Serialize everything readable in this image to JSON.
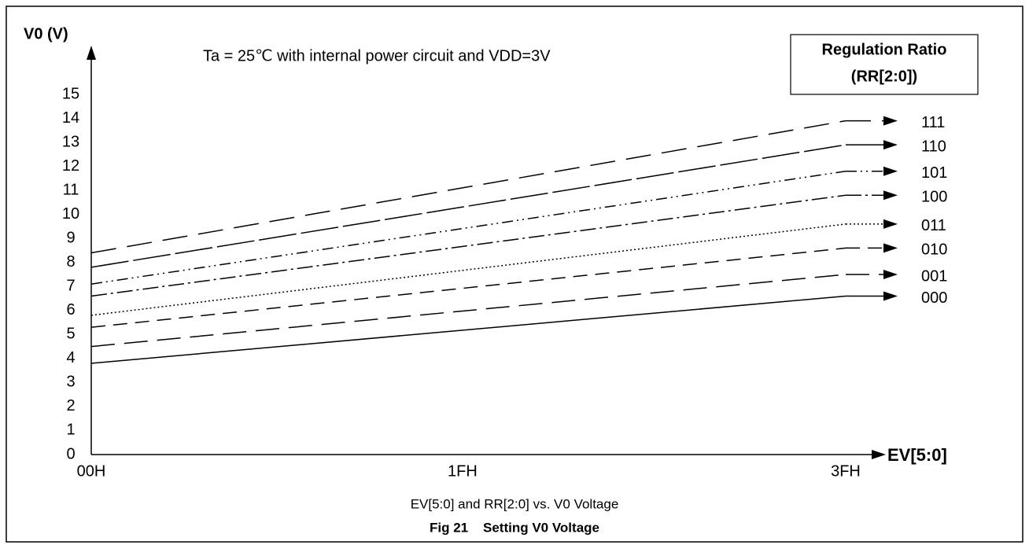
{
  "chart_data": {
    "type": "line",
    "annotation": "Ta = 25℃ with internal power circuit and VDD=3V",
    "y_label": "V0 (V)",
    "x_label": "EV[5:0]",
    "legend_title": [
      "Regulation Ratio",
      "(RR[2:0])"
    ],
    "caption": "EV[5:0] and RR[2:0] vs. V0 Voltage",
    "figure_title": "Fig 21    Setting V0 Voltage",
    "x": [
      0,
      63
    ],
    "xlim": [
      0,
      63
    ],
    "xticks": [
      {
        "value": 0,
        "label": "00H"
      },
      {
        "value": 31,
        "label": "1FH"
      },
      {
        "value": 63,
        "label": "3FH"
      }
    ],
    "ylim": [
      0,
      15
    ],
    "yticks": [
      0,
      1,
      2,
      3,
      4,
      5,
      6,
      7,
      8,
      9,
      10,
      11,
      12,
      13,
      14,
      15
    ],
    "series": [
      {
        "name": "111",
        "color": "#000",
        "dash": "32,14",
        "values": [
          8.4,
          13.9
        ]
      },
      {
        "name": "110",
        "color": "#000",
        "dash": "48,6",
        "values": [
          7.8,
          12.9
        ]
      },
      {
        "name": "101",
        "color": "#000",
        "dash": "14,5,2,5,2,5",
        "values": [
          7.1,
          11.8
        ]
      },
      {
        "name": "100",
        "color": "#000",
        "dash": "20,5,3,5",
        "values": [
          6.6,
          10.8
        ]
      },
      {
        "name": "011",
        "color": "#000",
        "dash": "2,3",
        "values": [
          5.8,
          9.6
        ]
      },
      {
        "name": "010",
        "color": "#000",
        "dash": "18,10",
        "values": [
          5.3,
          8.6
        ]
      },
      {
        "name": "001",
        "color": "#000",
        "dash": "30,12",
        "values": [
          4.5,
          7.5
        ]
      },
      {
        "name": "000",
        "color": "#000",
        "dash": "none",
        "values": [
          3.8,
          6.6
        ]
      }
    ]
  }
}
